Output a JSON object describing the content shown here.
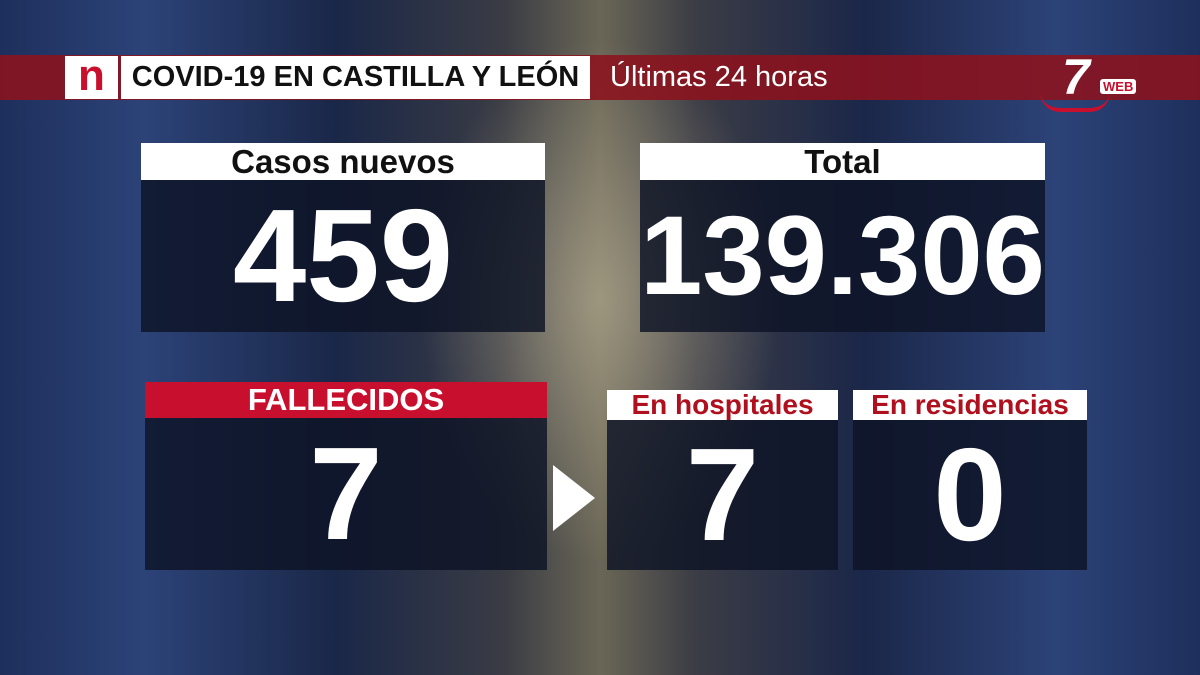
{
  "header": {
    "logo": "n",
    "title": "COVID-19 EN CASTILLA Y LEÓN",
    "subtitle": "Últimas 24 horas",
    "channel": "7",
    "channel_tag": "WEB"
  },
  "panels": [
    {
      "label": "Casos nuevos",
      "value": "459"
    },
    {
      "label": "Total",
      "value": "139.306"
    },
    {
      "label": "FALLECIDOS",
      "value": "7"
    },
    {
      "label": "En hospitales",
      "value": "7"
    },
    {
      "label": "En residencias",
      "value": "0"
    }
  ]
}
